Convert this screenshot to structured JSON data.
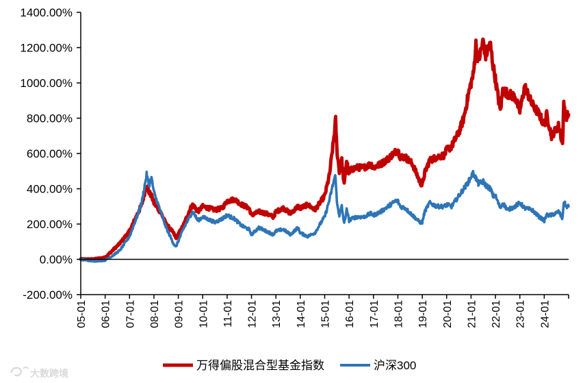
{
  "chart_data": {
    "type": "line",
    "title": "",
    "xlabel": "",
    "ylabel": "",
    "ylim": [
      -200,
      1400
    ],
    "yticks": [
      -200,
      0,
      200,
      400,
      600,
      800,
      1000,
      1200,
      1400
    ],
    "ytick_labels": [
      "-200.00%",
      "0.00%",
      "200.00%",
      "400.00%",
      "600.00%",
      "800.00%",
      "1000.00%",
      "1200.00%",
      "1400.00%"
    ],
    "xlim": [
      2005.0,
      2025.0
    ],
    "xticks": [
      2005,
      2006,
      2007,
      2008,
      2009,
      2010,
      2011,
      2012,
      2013,
      2014,
      2015,
      2016,
      2017,
      2018,
      2019,
      2020,
      2021,
      2022,
      2023,
      2024
    ],
    "xtick_labels": [
      "05-01",
      "06-01",
      "07-01",
      "08-01",
      "09-01",
      "10-01",
      "11-01",
      "12-01",
      "13-01",
      "14-01",
      "15-01",
      "16-01",
      "17-01",
      "18-01",
      "19-01",
      "20-01",
      "21-01",
      "22-01",
      "23-01",
      "24-01"
    ],
    "grid": false,
    "legend_position": "bottom",
    "series": [
      {
        "name": "万得偏股混合型基金指数",
        "color": "#C00000",
        "x": [
          2005.0,
          2005.5,
          2006.0,
          2006.3,
          2006.6,
          2007.0,
          2007.3,
          2007.5,
          2007.7,
          2007.8,
          2007.9,
          2008.0,
          2008.3,
          2008.5,
          2008.8,
          2008.9,
          2009.2,
          2009.5,
          2009.6,
          2009.8,
          2010.0,
          2010.5,
          2010.8,
          2011.0,
          2011.3,
          2011.6,
          2011.9,
          2012.0,
          2012.3,
          2012.6,
          2012.9,
          2013.0,
          2013.3,
          2013.6,
          2013.9,
          2014.0,
          2014.3,
          2014.6,
          2014.9,
          2015.0,
          2015.2,
          2015.3,
          2015.4,
          2015.45,
          2015.5,
          2015.6,
          2015.7,
          2015.8,
          2015.9,
          2016.0,
          2016.1,
          2016.3,
          2016.6,
          2016.9,
          2017.0,
          2017.3,
          2017.6,
          2017.9,
          2018.0,
          2018.1,
          2018.3,
          2018.6,
          2018.9,
          2019.0,
          2019.1,
          2019.3,
          2019.6,
          2019.9,
          2020.0,
          2020.2,
          2020.5,
          2020.7,
          2020.9,
          2021.0,
          2021.1,
          2021.2,
          2021.3,
          2021.5,
          2021.6,
          2021.7,
          2021.8,
          2021.9,
          2022.0,
          2022.2,
          2022.3,
          2022.5,
          2022.8,
          2023.0,
          2023.2,
          2023.5,
          2023.8,
          2024.0,
          2024.1,
          2024.3,
          2024.6,
          2024.75,
          2024.8,
          2024.9,
          2025.0
        ],
        "values": [
          0,
          0,
          10,
          50,
          90,
          160,
          250,
          310,
          420,
          380,
          360,
          320,
          260,
          200,
          150,
          120,
          190,
          290,
          310,
          270,
          300,
          280,
          290,
          330,
          340,
          310,
          290,
          250,
          270,
          260,
          240,
          270,
          290,
          260,
          300,
          290,
          310,
          280,
          340,
          360,
          480,
          600,
          720,
          790,
          620,
          500,
          560,
          420,
          560,
          480,
          510,
          520,
          520,
          540,
          520,
          540,
          570,
          610,
          620,
          580,
          580,
          540,
          440,
          420,
          490,
          560,
          580,
          590,
          620,
          640,
          720,
          800,
          940,
          1000,
          1050,
          1220,
          1120,
          1240,
          1150,
          1200,
          1210,
          1100,
          1020,
          840,
          960,
          940,
          920,
          840,
          980,
          880,
          820,
          760,
          820,
          700,
          760,
          650,
          880,
          810,
          820
        ]
      },
      {
        "name": "沪深300",
        "color": "#2E75B6",
        "x": [
          2005.0,
          2005.5,
          2006.0,
          2006.3,
          2006.6,
          2007.0,
          2007.3,
          2007.5,
          2007.7,
          2007.8,
          2007.9,
          2008.0,
          2008.3,
          2008.5,
          2008.8,
          2008.9,
          2009.2,
          2009.5,
          2009.6,
          2009.8,
          2010.0,
          2010.5,
          2010.8,
          2011.0,
          2011.3,
          2011.6,
          2011.9,
          2012.0,
          2012.3,
          2012.6,
          2012.9,
          2013.0,
          2013.3,
          2013.6,
          2013.9,
          2014.0,
          2014.3,
          2014.6,
          2014.9,
          2015.0,
          2015.2,
          2015.3,
          2015.4,
          2015.45,
          2015.5,
          2015.6,
          2015.7,
          2015.8,
          2015.9,
          2016.0,
          2016.1,
          2016.3,
          2016.6,
          2016.9,
          2017.0,
          2017.3,
          2017.6,
          2017.9,
          2018.0,
          2018.1,
          2018.3,
          2018.6,
          2018.9,
          2019.0,
          2019.1,
          2019.3,
          2019.6,
          2019.9,
          2020.0,
          2020.2,
          2020.5,
          2020.7,
          2020.9,
          2021.0,
          2021.1,
          2021.2,
          2021.3,
          2021.5,
          2021.6,
          2021.7,
          2021.8,
          2021.9,
          2022.0,
          2022.2,
          2022.3,
          2022.5,
          2022.8,
          2023.0,
          2023.2,
          2023.5,
          2023.8,
          2024.0,
          2024.1,
          2024.3,
          2024.6,
          2024.75,
          2024.8,
          2024.9,
          2025.0
        ],
        "values": [
          0,
          -10,
          -5,
          20,
          50,
          130,
          240,
          320,
          480,
          420,
          460,
          380,
          260,
          180,
          90,
          70,
          170,
          250,
          270,
          220,
          240,
          210,
          230,
          250,
          230,
          190,
          170,
          140,
          180,
          160,
          140,
          160,
          170,
          140,
          180,
          150,
          130,
          150,
          220,
          240,
          340,
          400,
          460,
          470,
          320,
          250,
          300,
          200,
          280,
          220,
          230,
          240,
          240,
          260,
          250,
          270,
          300,
          330,
          330,
          300,
          290,
          250,
          210,
          210,
          270,
          320,
          300,
          300,
          310,
          300,
          360,
          400,
          440,
          470,
          490,
          460,
          430,
          440,
          420,
          410,
          400,
          360,
          360,
          290,
          320,
          280,
          300,
          320,
          290,
          280,
          240,
          220,
          250,
          250,
          270,
          230,
          330,
          300,
          300
        ]
      }
    ]
  },
  "watermark": {
    "text": "大数跨境",
    "logo_icon": "swirl-logo-icon"
  }
}
